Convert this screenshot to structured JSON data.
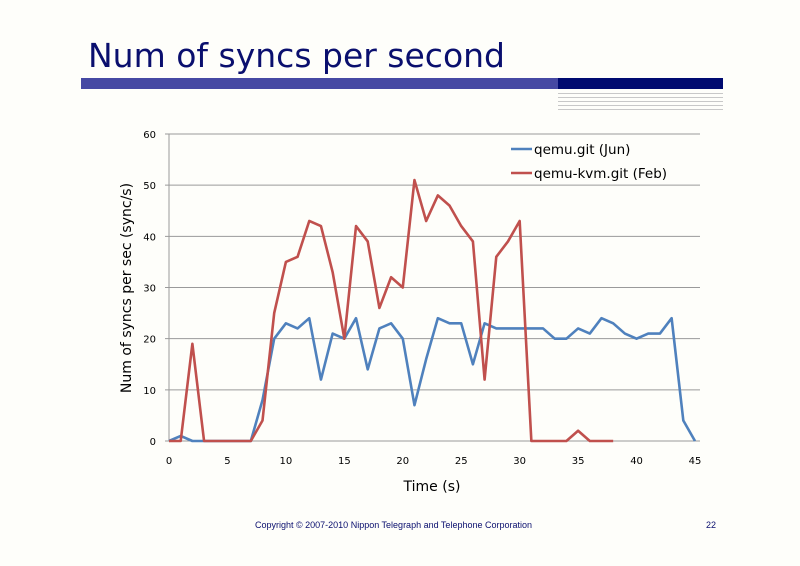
{
  "slide": {
    "title": "Num of syncs per second",
    "footer": "Copyright © 2007-2010 Nippon Telegraph and Telephone Corporation",
    "page_number": "22"
  },
  "chart_data": {
    "type": "line",
    "title": "",
    "xlabel": "Time (s)",
    "ylabel": "Num of syncs per sec (sync/s)",
    "xlim": [
      0,
      45
    ],
    "ylim": [
      0,
      60
    ],
    "xticks": [
      0,
      5,
      10,
      15,
      20,
      25,
      30,
      35,
      40,
      45
    ],
    "yticks": [
      0,
      10,
      20,
      30,
      40,
      50,
      60
    ],
    "grid": "horizontal",
    "legend": "top-right",
    "series": [
      {
        "name": "qemu.git (Jun)",
        "color": "#4f81bd",
        "x": [
          0,
          1,
          2,
          3,
          4,
          5,
          6,
          7,
          8,
          9,
          10,
          11,
          12,
          13,
          14,
          15,
          16,
          17,
          18,
          19,
          20,
          21,
          22,
          23,
          24,
          25,
          26,
          27,
          28,
          29,
          30,
          31,
          32,
          33,
          34,
          35,
          36,
          37,
          38,
          39,
          40,
          41,
          42,
          43,
          44,
          45
        ],
        "values": [
          0,
          1,
          0,
          0,
          0,
          0,
          0,
          0,
          8,
          20,
          23,
          22,
          24,
          12,
          21,
          20,
          24,
          14,
          22,
          23,
          20,
          7,
          16,
          24,
          23,
          23,
          15,
          23,
          22,
          22,
          22,
          22,
          22,
          20,
          20,
          22,
          21,
          24,
          23,
          21,
          20,
          21,
          21,
          24,
          4,
          0
        ]
      },
      {
        "name": "qemu-kvm.git (Feb)",
        "color": "#c0504d",
        "x": [
          0,
          1,
          2,
          3,
          4,
          5,
          6,
          7,
          8,
          9,
          10,
          11,
          12,
          13,
          14,
          15,
          16,
          17,
          18,
          19,
          20,
          21,
          22,
          23,
          24,
          25,
          26,
          27,
          28,
          29,
          30,
          31,
          32,
          33,
          34,
          35,
          36,
          37,
          38
        ],
        "values": [
          0,
          0,
          19,
          0,
          0,
          0,
          0,
          0,
          4,
          25,
          35,
          36,
          43,
          42,
          33,
          20,
          42,
          39,
          26,
          32,
          30,
          51,
          43,
          48,
          46,
          42,
          39,
          12,
          36,
          39,
          43,
          0,
          0,
          0,
          0,
          2,
          0,
          0,
          0
        ]
      }
    ]
  }
}
